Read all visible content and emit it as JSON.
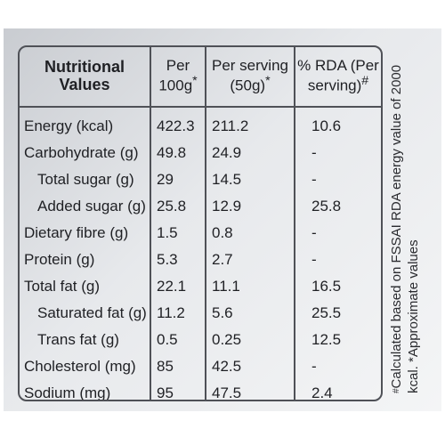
{
  "table": {
    "header": {
      "name": "Nutritional Values",
      "per100": "Per 100g",
      "per100_mark": "*",
      "serving": "Per serving (50g)",
      "serving_mark": "*",
      "rda": "% RDA (Per serving)",
      "rda_mark": "#"
    },
    "rows": [
      {
        "name": "Energy (kcal)",
        "per100": "422.3",
        "serving": "211.2",
        "rda": "10.6"
      },
      {
        "name": "Carbohydrate (g)",
        "per100": "49.8",
        "serving": "24.9",
        "rda": "-"
      },
      {
        "name": "Total sugar (g)",
        "per100": "29",
        "serving": "14.5",
        "rda": "-"
      },
      {
        "name": "Added sugar (g)",
        "per100": "25.8",
        "serving": "12.9",
        "rda": "25.8"
      },
      {
        "name": "Dietary fibre (g)",
        "per100": "1.5",
        "serving": "0.8",
        "rda": "-"
      },
      {
        "name": "Protein (g)",
        "per100": "5.3",
        "serving": "2.7",
        "rda": "-"
      },
      {
        "name": "Total fat (g)",
        "per100": "22.1",
        "serving": "11.1",
        "rda": "16.5"
      },
      {
        "name": "Saturated fat (g)",
        "per100": "11.2",
        "serving": "5.6",
        "rda": "25.5"
      },
      {
        "name": "Trans fat (g)",
        "per100": "0.5",
        "serving": "0.25",
        "rda": "12.5"
      },
      {
        "name": "Cholesterol (mg)",
        "per100": "85",
        "serving": "42.5",
        "rda": "-"
      },
      {
        "name": "Sodium (mg)",
        "per100": "95",
        "serving": "47.5",
        "rda": "2.4"
      }
    ]
  },
  "footnote": {
    "mark": "#",
    "text": "Calculated based on FSSAI RDA energy value of 2000 kcal. *Approximate values"
  },
  "colors": {
    "border": "#4f5157",
    "text": "#1f2024",
    "background_light": "#f4f5f6",
    "background_dark": "#c9ccd1"
  }
}
